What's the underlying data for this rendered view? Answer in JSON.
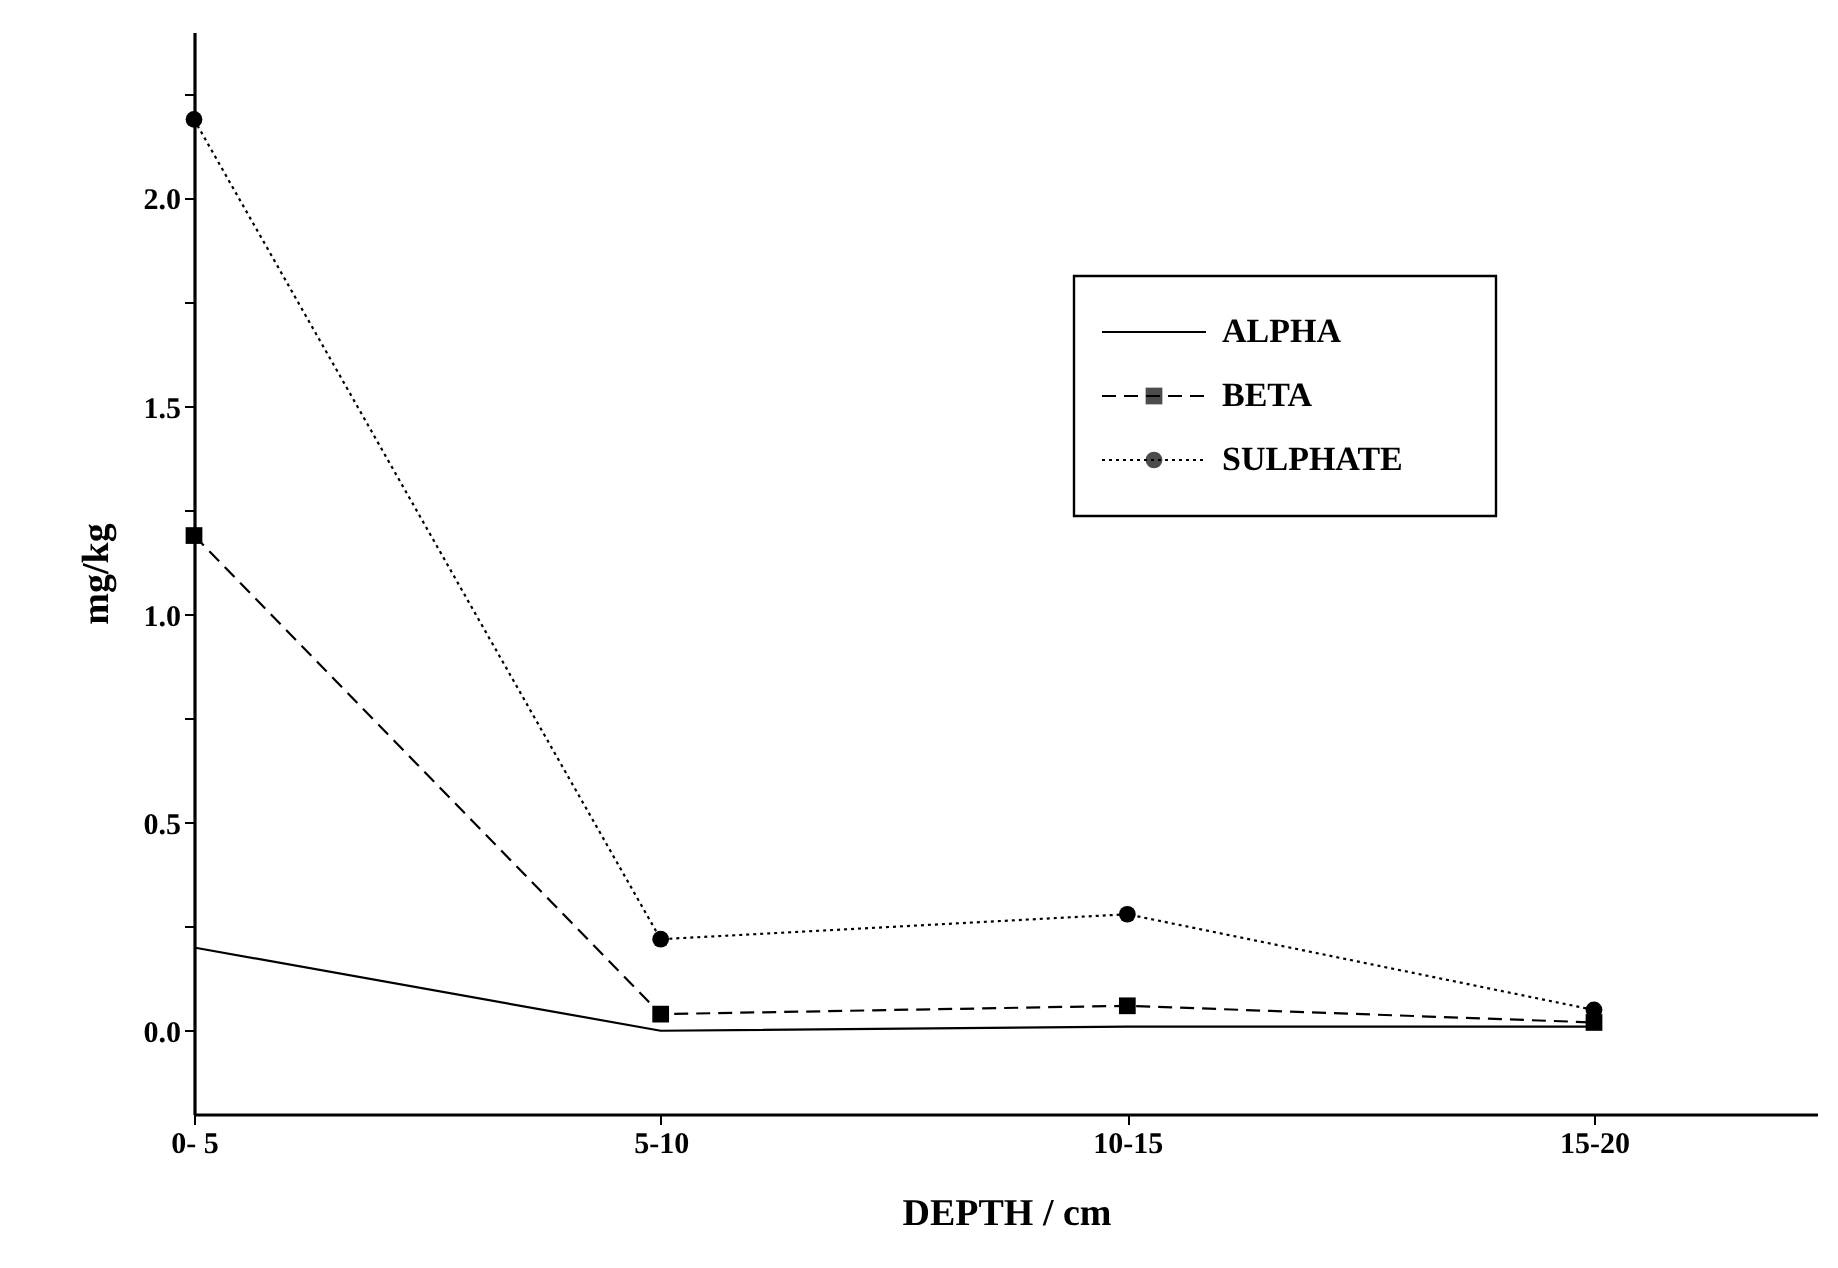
{
  "chart_data": {
    "type": "line",
    "xlabel": "DEPTH / cm",
    "ylabel": "mg/kg",
    "categories": [
      "0- 5",
      "5-10",
      "10-15",
      "15-20"
    ],
    "series": [
      {
        "name": "ALPHA",
        "color": "#000000",
        "marker": "none",
        "line_style": "solid",
        "values": [
          0.2,
          0.0,
          0.01,
          0.01
        ]
      },
      {
        "name": "BETA",
        "color": "#000000",
        "marker": "square",
        "line_style": "dashed",
        "values": [
          1.19,
          0.04,
          0.06,
          0.02
        ]
      },
      {
        "name": "SULPHATE",
        "color": "#000000",
        "marker": "circle",
        "line_style": "dotted",
        "values": [
          2.19,
          0.22,
          0.28,
          0.05
        ]
      }
    ],
    "ylim": [
      -0.2,
      2.4
    ],
    "yticks": [
      {
        "value": 0,
        "label": "0.0"
      },
      {
        "value": 0.25,
        "label": null
      },
      0.5,
      {
        "value": 0.75,
        "label": null
      },
      {
        "value": 1,
        "label": "1.0"
      },
      {
        "value": 1.25,
        "label": null
      },
      1.5,
      {
        "value": 1.75,
        "label": null
      },
      {
        "value": 2,
        "label": "2.0"
      },
      {
        "value": 2.25,
        "label": null
      }
    ],
    "grid": false,
    "legend": "top right"
  }
}
